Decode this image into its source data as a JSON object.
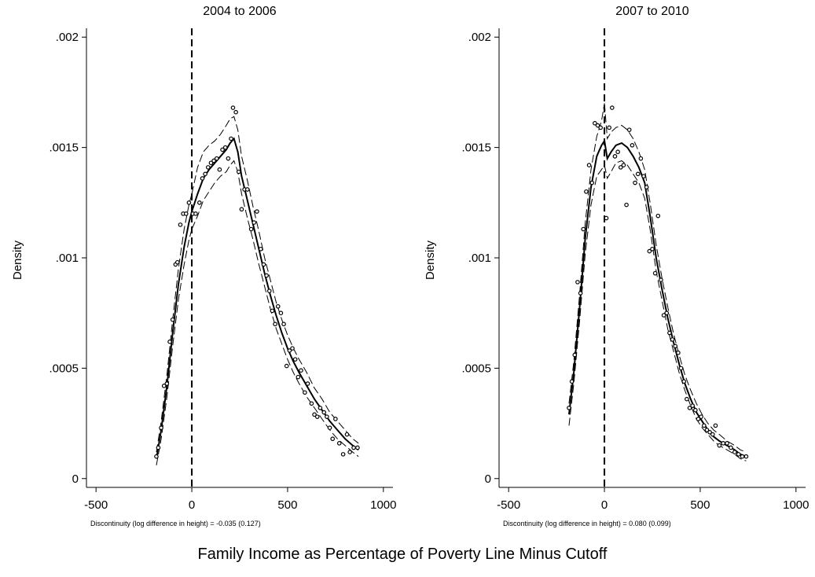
{
  "figure": {
    "xlabel": "Family Income as Percentage of Poverty Line Minus Cutoff"
  },
  "chart_data": [
    {
      "type": "line",
      "title": "2004 to 2006",
      "ylabel": "Density",
      "note": "Discontinuity (log difference in height) = -0.035 (0.127)",
      "xlim": [
        -550,
        1050
      ],
      "ylim": [
        -4e-05,
        0.00204
      ],
      "xticks": [
        -500,
        0,
        500,
        1000
      ],
      "xtick_labels": [
        "-500",
        "0",
        "500",
        "1000"
      ],
      "yticks": [
        0,
        0.0005,
        0.001,
        0.0015,
        0.002
      ],
      "ytick_labels": [
        "0",
        ".0005",
        ".001",
        ".0015",
        ".002"
      ],
      "cutoff": 0,
      "grid": false,
      "scatter": [
        [
          -185,
          0.0001
        ],
        [
          -175,
          0.00014
        ],
        [
          -160,
          0.00023
        ],
        [
          -145,
          0.00042
        ],
        [
          -130,
          0.00043
        ],
        [
          -115,
          0.00062
        ],
        [
          -100,
          0.00072
        ],
        [
          -85,
          0.00097
        ],
        [
          -75,
          0.00098
        ],
        [
          -60,
          0.00115
        ],
        [
          -45,
          0.0012
        ],
        [
          -30,
          0.0012
        ],
        [
          -15,
          0.00125
        ],
        [
          5,
          0.0012
        ],
        [
          20,
          0.0012
        ],
        [
          40,
          0.00125
        ],
        [
          55,
          0.00136
        ],
        [
          70,
          0.00138
        ],
        [
          85,
          0.00141
        ],
        [
          100,
          0.00143
        ],
        [
          115,
          0.00144
        ],
        [
          130,
          0.00145
        ],
        [
          145,
          0.0014
        ],
        [
          160,
          0.00149
        ],
        [
          175,
          0.0015
        ],
        [
          190,
          0.00145
        ],
        [
          205,
          0.00154
        ],
        [
          215,
          0.00168
        ],
        [
          230,
          0.00166
        ],
        [
          245,
          0.00139
        ],
        [
          260,
          0.00122
        ],
        [
          275,
          0.00131
        ],
        [
          290,
          0.00131
        ],
        [
          310,
          0.00113
        ],
        [
          325,
          0.00116
        ],
        [
          340,
          0.00121
        ],
        [
          360,
          0.00104
        ],
        [
          375,
          0.00097
        ],
        [
          390,
          0.00092
        ],
        [
          405,
          0.00085
        ],
        [
          420,
          0.00076
        ],
        [
          435,
          0.0007
        ],
        [
          450,
          0.00078
        ],
        [
          465,
          0.00075
        ],
        [
          480,
          0.0007
        ],
        [
          495,
          0.00051
        ],
        [
          510,
          0.00058
        ],
        [
          525,
          0.00059
        ],
        [
          540,
          0.00054
        ],
        [
          555,
          0.00046
        ],
        [
          570,
          0.00049
        ],
        [
          590,
          0.00039
        ],
        [
          605,
          0.00043
        ],
        [
          625,
          0.00034
        ],
        [
          640,
          0.00029
        ],
        [
          655,
          0.00028
        ],
        [
          670,
          0.00032
        ],
        [
          690,
          0.0003
        ],
        [
          705,
          0.00028
        ],
        [
          720,
          0.00023
        ],
        [
          735,
          0.00018
        ],
        [
          750,
          0.00027
        ],
        [
          770,
          0.00016
        ],
        [
          790,
          0.00011
        ],
        [
          810,
          0.0002
        ],
        [
          825,
          0.00012
        ],
        [
          845,
          0.00014
        ],
        [
          865,
          0.00014
        ]
      ],
      "fit": [
        [
          -185,
          9e-05
        ],
        [
          -160,
          0.00022
        ],
        [
          -130,
          0.00042
        ],
        [
          -100,
          0.00066
        ],
        [
          -70,
          0.00088
        ],
        [
          -40,
          0.00105
        ],
        [
          -15,
          0.00116
        ],
        [
          0,
          0.00121
        ],
        [
          30,
          0.00129
        ],
        [
          60,
          0.00136
        ],
        [
          90,
          0.0014
        ],
        [
          120,
          0.00143
        ],
        [
          150,
          0.00146
        ],
        [
          180,
          0.00149
        ],
        [
          200,
          0.00152
        ],
        [
          220,
          0.00154
        ],
        [
          240,
          0.00148
        ],
        [
          260,
          0.00137
        ],
        [
          290,
          0.00126
        ],
        [
          320,
          0.00115
        ],
        [
          350,
          0.00104
        ],
        [
          380,
          0.00093
        ],
        [
          410,
          0.00083
        ],
        [
          440,
          0.00074
        ],
        [
          470,
          0.00066
        ],
        [
          500,
          0.00059
        ],
        [
          530,
          0.00053
        ],
        [
          560,
          0.00048
        ],
        [
          600,
          0.00042
        ],
        [
          640,
          0.00036
        ],
        [
          680,
          0.00031
        ],
        [
          720,
          0.00026
        ],
        [
          760,
          0.00022
        ],
        [
          800,
          0.00018
        ],
        [
          840,
          0.00015
        ],
        [
          870,
          0.00013
        ]
      ],
      "ci_upper": [
        [
          -185,
          0.00012
        ],
        [
          -160,
          0.00026
        ],
        [
          -130,
          0.00047
        ],
        [
          -100,
          0.00072
        ],
        [
          -70,
          0.00095
        ],
        [
          -40,
          0.00113
        ],
        [
          -15,
          0.00124
        ],
        [
          0,
          0.00129
        ],
        [
          30,
          0.00141
        ],
        [
          60,
          0.00148
        ],
        [
          90,
          0.00151
        ],
        [
          120,
          0.00153
        ],
        [
          150,
          0.00156
        ],
        [
          180,
          0.0016
        ],
        [
          200,
          0.00163
        ],
        [
          220,
          0.00164
        ],
        [
          240,
          0.00158
        ],
        [
          260,
          0.00146
        ],
        [
          290,
          0.00135
        ],
        [
          320,
          0.00123
        ],
        [
          350,
          0.00112
        ],
        [
          380,
          0.001
        ],
        [
          410,
          0.0009
        ],
        [
          440,
          0.0008
        ],
        [
          470,
          0.00072
        ],
        [
          500,
          0.00065
        ],
        [
          530,
          0.00059
        ],
        [
          560,
          0.00054
        ],
        [
          600,
          0.00048
        ],
        [
          640,
          0.00041
        ],
        [
          680,
          0.00036
        ],
        [
          720,
          0.0003
        ],
        [
          760,
          0.00026
        ],
        [
          800,
          0.00022
        ],
        [
          840,
          0.00018
        ],
        [
          870,
          0.00016
        ]
      ],
      "ci_lower": [
        [
          -185,
          6e-05
        ],
        [
          -160,
          0.00018
        ],
        [
          -130,
          0.00037
        ],
        [
          -100,
          0.0006
        ],
        [
          -70,
          0.00081
        ],
        [
          -40,
          0.00097
        ],
        [
          -15,
          0.00108
        ],
        [
          0,
          0.00113
        ],
        [
          30,
          0.00119
        ],
        [
          60,
          0.00126
        ],
        [
          90,
          0.0013
        ],
        [
          120,
          0.00134
        ],
        [
          150,
          0.00137
        ],
        [
          180,
          0.00139
        ],
        [
          200,
          0.00142
        ],
        [
          220,
          0.00144
        ],
        [
          240,
          0.00139
        ],
        [
          260,
          0.00129
        ],
        [
          290,
          0.00118
        ],
        [
          320,
          0.00108
        ],
        [
          350,
          0.00097
        ],
        [
          380,
          0.00087
        ],
        [
          410,
          0.00077
        ],
        [
          440,
          0.00068
        ],
        [
          470,
          0.00061
        ],
        [
          500,
          0.00054
        ],
        [
          530,
          0.00048
        ],
        [
          560,
          0.00043
        ],
        [
          600,
          0.00037
        ],
        [
          640,
          0.00032
        ],
        [
          680,
          0.00027
        ],
        [
          720,
          0.00022
        ],
        [
          760,
          0.00018
        ],
        [
          800,
          0.00015
        ],
        [
          840,
          0.00012
        ],
        [
          870,
          0.0001
        ]
      ]
    },
    {
      "type": "line",
      "title": "2007 to 2010",
      "ylabel": "Density",
      "note": "Discontinuity (log difference in height) = 0.080 (0.099)",
      "xlim": [
        -550,
        1050
      ],
      "ylim": [
        -4e-05,
        0.00204
      ],
      "xticks": [
        -500,
        0,
        500,
        1000
      ],
      "xtick_labels": [
        "-500",
        "0",
        "500",
        "1000"
      ],
      "yticks": [
        0,
        0.0005,
        0.001,
        0.0015,
        0.002
      ],
      "ytick_labels": [
        "0",
        ".0005",
        ".001",
        ".0015",
        ".002"
      ],
      "cutoff": 0,
      "grid": false,
      "scatter": [
        [
          -185,
          0.00032
        ],
        [
          -170,
          0.00044
        ],
        [
          -155,
          0.00056
        ],
        [
          -140,
          0.00089
        ],
        [
          -125,
          0.00084
        ],
        [
          -110,
          0.00113
        ],
        [
          -95,
          0.0013
        ],
        [
          -80,
          0.00142
        ],
        [
          -65,
          0.00134
        ],
        [
          -50,
          0.00161
        ],
        [
          -35,
          0.0016
        ],
        [
          -20,
          0.00159
        ],
        [
          10,
          0.00118
        ],
        [
          25,
          0.00159
        ],
        [
          40,
          0.00168
        ],
        [
          55,
          0.00146
        ],
        [
          70,
          0.00148
        ],
        [
          85,
          0.00141
        ],
        [
          100,
          0.00142
        ],
        [
          115,
          0.00124
        ],
        [
          130,
          0.00158
        ],
        [
          145,
          0.00151
        ],
        [
          160,
          0.00134
        ],
        [
          175,
          0.00138
        ],
        [
          190,
          0.00145
        ],
        [
          205,
          0.00137
        ],
        [
          220,
          0.00132
        ],
        [
          235,
          0.00103
        ],
        [
          250,
          0.00104
        ],
        [
          265,
          0.00093
        ],
        [
          280,
          0.00119
        ],
        [
          295,
          0.0009
        ],
        [
          310,
          0.00074
        ],
        [
          325,
          0.00075
        ],
        [
          340,
          0.00066
        ],
        [
          355,
          0.00063
        ],
        [
          370,
          0.0006
        ],
        [
          385,
          0.00057
        ],
        [
          400,
          0.0005
        ],
        [
          415,
          0.00044
        ],
        [
          430,
          0.00036
        ],
        [
          445,
          0.00032
        ],
        [
          460,
          0.00033
        ],
        [
          475,
          0.00031
        ],
        [
          490,
          0.00027
        ],
        [
          505,
          0.00028
        ],
        [
          520,
          0.00024
        ],
        [
          535,
          0.00022
        ],
        [
          550,
          0.00021
        ],
        [
          565,
          0.0002
        ],
        [
          580,
          0.00024
        ],
        [
          600,
          0.00015
        ],
        [
          620,
          0.00016
        ],
        [
          640,
          0.00016
        ],
        [
          660,
          0.00014
        ],
        [
          680,
          0.00012
        ],
        [
          700,
          0.00011
        ],
        [
          720,
          0.0001
        ],
        [
          740,
          0.0001
        ]
      ],
      "fit": [
        [
          -185,
          0.00029
        ],
        [
          -160,
          0.00048
        ],
        [
          -130,
          0.00077
        ],
        [
          -100,
          0.00109
        ],
        [
          -70,
          0.00132
        ],
        [
          -40,
          0.00146
        ],
        [
          -15,
          0.00151
        ],
        [
          0,
          0.00153
        ],
        [
          15,
          0.00145
        ],
        [
          35,
          0.00148
        ],
        [
          60,
          0.00151
        ],
        [
          90,
          0.00152
        ],
        [
          120,
          0.0015
        ],
        [
          150,
          0.00146
        ],
        [
          180,
          0.00141
        ],
        [
          210,
          0.00134
        ],
        [
          240,
          0.00118
        ],
        [
          270,
          0.001
        ],
        [
          300,
          0.00086
        ],
        [
          330,
          0.00073
        ],
        [
          360,
          0.00062
        ],
        [
          390,
          0.00052
        ],
        [
          420,
          0.00043
        ],
        [
          450,
          0.00036
        ],
        [
          480,
          0.0003
        ],
        [
          510,
          0.00026
        ],
        [
          540,
          0.00022
        ],
        [
          570,
          0.00019
        ],
        [
          600,
          0.00017
        ],
        [
          640,
          0.00015
        ],
        [
          680,
          0.00013
        ],
        [
          710,
          0.00011
        ],
        [
          740,
          0.0001
        ]
      ],
      "ci_upper": [
        [
          -185,
          0.00034
        ],
        [
          -160,
          0.00053
        ],
        [
          -130,
          0.00083
        ],
        [
          -100,
          0.00116
        ],
        [
          -70,
          0.0014
        ],
        [
          -40,
          0.00155
        ],
        [
          -15,
          0.00162
        ],
        [
          0,
          0.0017
        ],
        [
          15,
          0.00154
        ],
        [
          35,
          0.00157
        ],
        [
          60,
          0.00159
        ],
        [
          90,
          0.0016
        ],
        [
          120,
          0.00158
        ],
        [
          150,
          0.00154
        ],
        [
          180,
          0.00148
        ],
        [
          210,
          0.0014
        ],
        [
          240,
          0.00124
        ],
        [
          270,
          0.00106
        ],
        [
          300,
          0.00091
        ],
        [
          330,
          0.00078
        ],
        [
          360,
          0.00066
        ],
        [
          390,
          0.00056
        ],
        [
          420,
          0.00047
        ],
        [
          450,
          0.0004
        ],
        [
          480,
          0.00034
        ],
        [
          510,
          0.00029
        ],
        [
          540,
          0.00025
        ],
        [
          570,
          0.00022
        ],
        [
          600,
          0.0002
        ],
        [
          640,
          0.00017
        ],
        [
          680,
          0.00015
        ],
        [
          710,
          0.00013
        ],
        [
          740,
          0.00012
        ]
      ],
      "ci_lower": [
        [
          -185,
          0.00024
        ],
        [
          -160,
          0.00043
        ],
        [
          -130,
          0.00071
        ],
        [
          -100,
          0.00102
        ],
        [
          -70,
          0.00124
        ],
        [
          -40,
          0.00137
        ],
        [
          -15,
          0.0014
        ],
        [
          0,
          0.00142
        ],
        [
          15,
          0.00136
        ],
        [
          35,
          0.00139
        ],
        [
          60,
          0.00143
        ],
        [
          90,
          0.00144
        ],
        [
          120,
          0.00142
        ],
        [
          150,
          0.00138
        ],
        [
          180,
          0.00134
        ],
        [
          210,
          0.00127
        ],
        [
          240,
          0.00112
        ],
        [
          270,
          0.00094
        ],
        [
          300,
          0.00081
        ],
        [
          330,
          0.00068
        ],
        [
          360,
          0.00058
        ],
        [
          390,
          0.00048
        ],
        [
          420,
          0.0004
        ],
        [
          450,
          0.00033
        ],
        [
          480,
          0.00027
        ],
        [
          510,
          0.00023
        ],
        [
          540,
          0.0002
        ],
        [
          570,
          0.00017
        ],
        [
          600,
          0.00015
        ],
        [
          640,
          0.00013
        ],
        [
          680,
          0.00011
        ],
        [
          710,
          9e-05
        ],
        [
          740,
          8e-05
        ]
      ]
    }
  ]
}
